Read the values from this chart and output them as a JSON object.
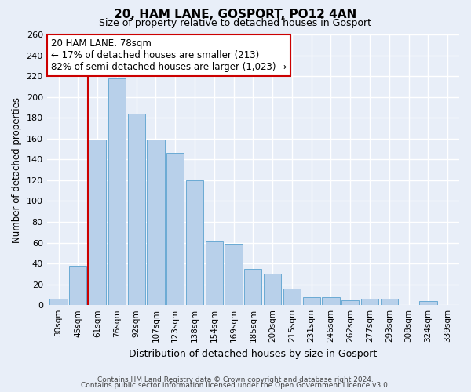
{
  "title1": "20, HAM LANE, GOSPORT, PO12 4AN",
  "title2": "Size of property relative to detached houses in Gosport",
  "xlabel": "Distribution of detached houses by size in Gosport",
  "ylabel": "Number of detached properties",
  "categories": [
    "30sqm",
    "45sqm",
    "61sqm",
    "76sqm",
    "92sqm",
    "107sqm",
    "123sqm",
    "138sqm",
    "154sqm",
    "169sqm",
    "185sqm",
    "200sqm",
    "215sqm",
    "231sqm",
    "246sqm",
    "262sqm",
    "277sqm",
    "293sqm",
    "308sqm",
    "324sqm",
    "339sqm"
  ],
  "values": [
    6,
    38,
    159,
    218,
    184,
    159,
    146,
    120,
    61,
    59,
    35,
    30,
    16,
    8,
    8,
    5,
    6,
    6,
    0,
    4,
    0
  ],
  "bar_color": "#b8d0ea",
  "bar_edge_color": "#6aaad4",
  "annotation_text": "20 HAM LANE: 78sqm\n← 17% of detached houses are smaller (213)\n82% of semi-detached houses are larger (1,023) →",
  "annotation_box_color": "#ffffff",
  "annotation_box_edge": "#cc0000",
  "property_line_x": 1.5,
  "ylim": [
    0,
    260
  ],
  "yticks": [
    0,
    20,
    40,
    60,
    80,
    100,
    120,
    140,
    160,
    180,
    200,
    220,
    240,
    260
  ],
  "footer1": "Contains HM Land Registry data © Crown copyright and database right 2024.",
  "footer2": "Contains public sector information licensed under the Open Government Licence v3.0.",
  "bg_color": "#e8eef8",
  "grid_color": "#ffffff"
}
